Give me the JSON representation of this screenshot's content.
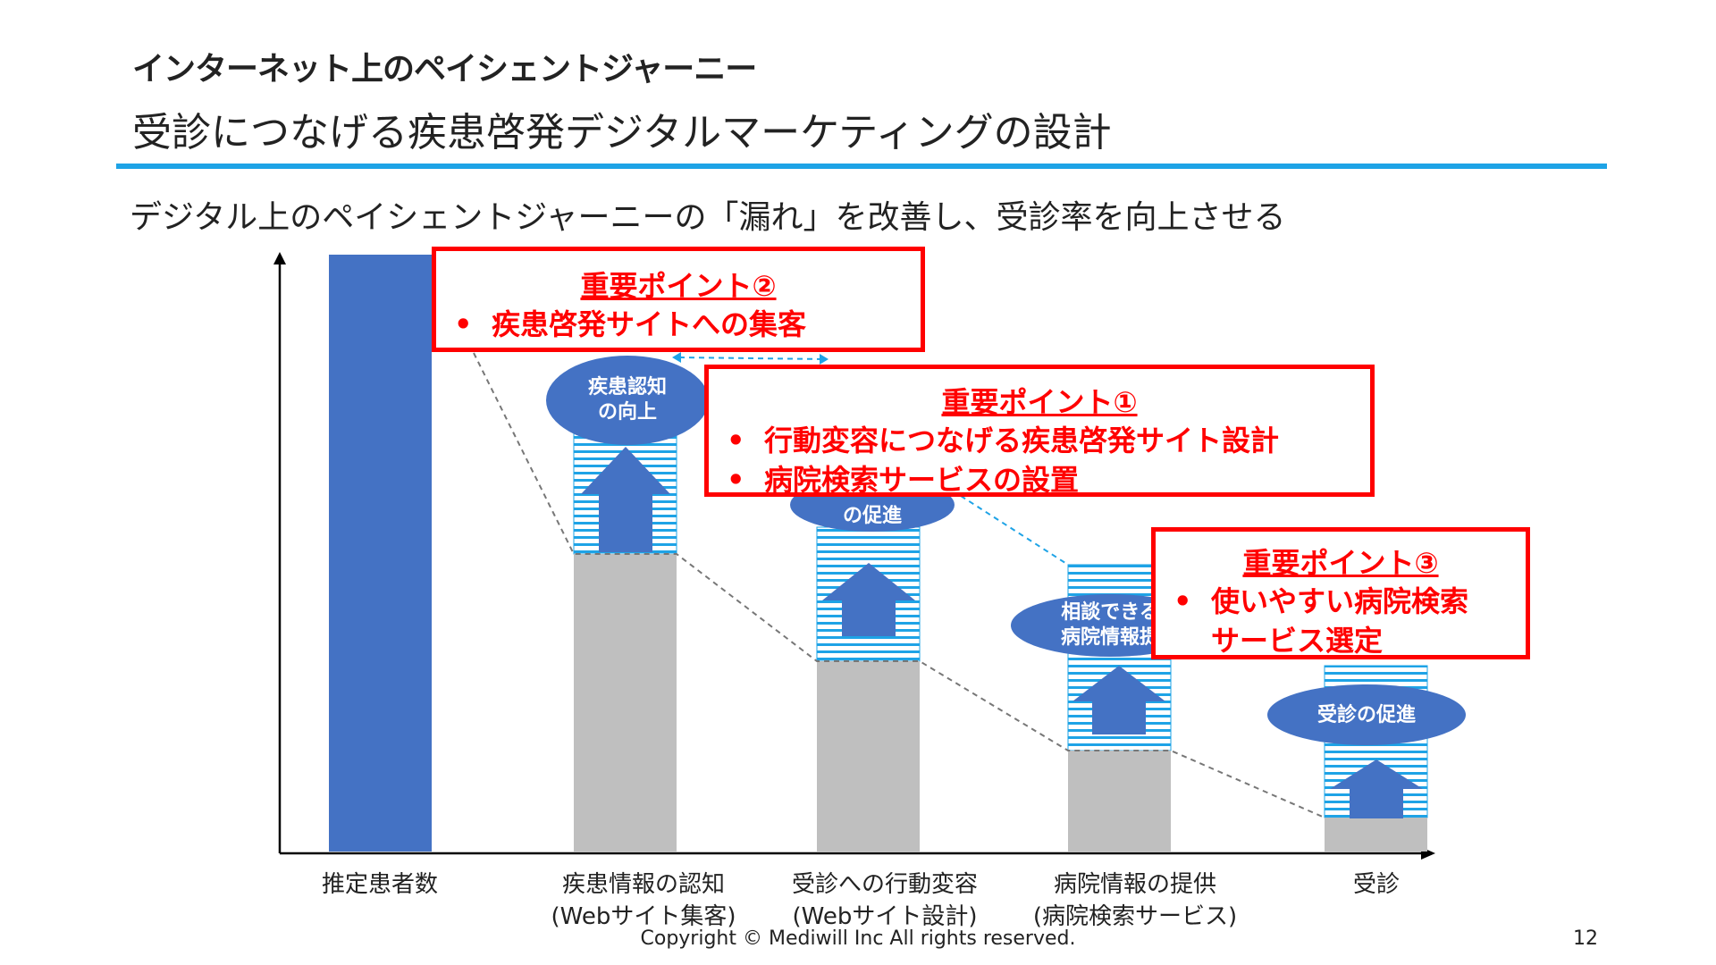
{
  "header": {
    "title": "インターネット上のペイシェントジャーニー",
    "subtitle": "受診につなげる疾患啓発デジタルマーケティングの設計",
    "tagline": "デジタル上のペイシェントジャーニーの「漏れ」を改善し、受診率を向上させる"
  },
  "chart": {
    "categories": [
      "推定患者数",
      "疾患情報の認知\n(Webサイト集客)",
      "受診への行動変容\n(Webサイト設計)",
      "病院情報の提供\n(病院検索サービス)",
      "受診"
    ],
    "ovals": [
      "疾患認知\nの向上",
      "の促進",
      "相談できる\n病院情報提",
      "受診の促進"
    ]
  },
  "callouts": [
    {
      "heading": "重要ポイント②",
      "items": [
        "疾患啓発サイトへの集客"
      ]
    },
    {
      "heading": "重要ポイント①",
      "items": [
        "行動変容につなげる疾患啓発サイト設計",
        "病院検索サービスの設置"
      ]
    },
    {
      "heading": "重要ポイント③",
      "items": [
        "使いやすい病院検索サービス選定"
      ]
    }
  ],
  "colors": {
    "accent_rule": "#1ea3e6",
    "bar_blue": "#4472c4",
    "bar_gray": "#bfbfbf",
    "callout_red": "#ff0000"
  },
  "footer": {
    "copyright": "Copyright © Mediwill Inc All rights reserved.",
    "page": "12"
  }
}
